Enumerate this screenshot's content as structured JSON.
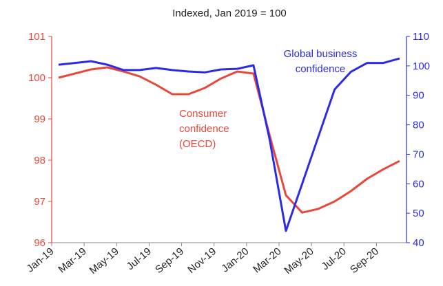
{
  "chart_data": {
    "type": "line",
    "title": "Indexed, Jan 2019 = 100",
    "categories": [
      "Jan-19",
      null,
      "Mar-19",
      null,
      "May-19",
      null,
      "Jul-19",
      null,
      "Sep-19",
      null,
      "Nov-19",
      null,
      "Jan-20",
      null,
      "Mar-20",
      null,
      "May-20",
      null,
      "Jul-20",
      null,
      "Sep-20",
      null
    ],
    "series": [
      {
        "name": "Consumer confidence (OECD)",
        "label_lines": [
          "Consumer",
          "confidence",
          "(OECD)"
        ],
        "color": "#e8483a",
        "axis": "y",
        "values": [
          100.0,
          100.1,
          100.2,
          100.25,
          100.15,
          100.03,
          99.83,
          99.6,
          99.6,
          99.75,
          99.98,
          100.15,
          100.1,
          98.6,
          97.15,
          96.73,
          96.82,
          97.0,
          97.25,
          97.55,
          97.78,
          97.98
        ]
      },
      {
        "name": "Global business confidence",
        "label_lines": [
          "Global business",
          "confidence"
        ],
        "color": "#2b2be6",
        "axis": "y2",
        "values": [
          100.4,
          101,
          101.6,
          100.4,
          98.6,
          98.6,
          99.3,
          98.6,
          98.1,
          97.8,
          98.8,
          99,
          100.2,
          75,
          44,
          60,
          76,
          92,
          98,
          101,
          101,
          102.5
        ]
      }
    ],
    "ylim": [
      96,
      101
    ],
    "yticks": [
      96,
      97,
      98,
      99,
      100,
      101
    ],
    "y2lim": [
      40,
      110
    ],
    "y2ticks": [
      40,
      50,
      60,
      70,
      80,
      90,
      100,
      110
    ]
  }
}
